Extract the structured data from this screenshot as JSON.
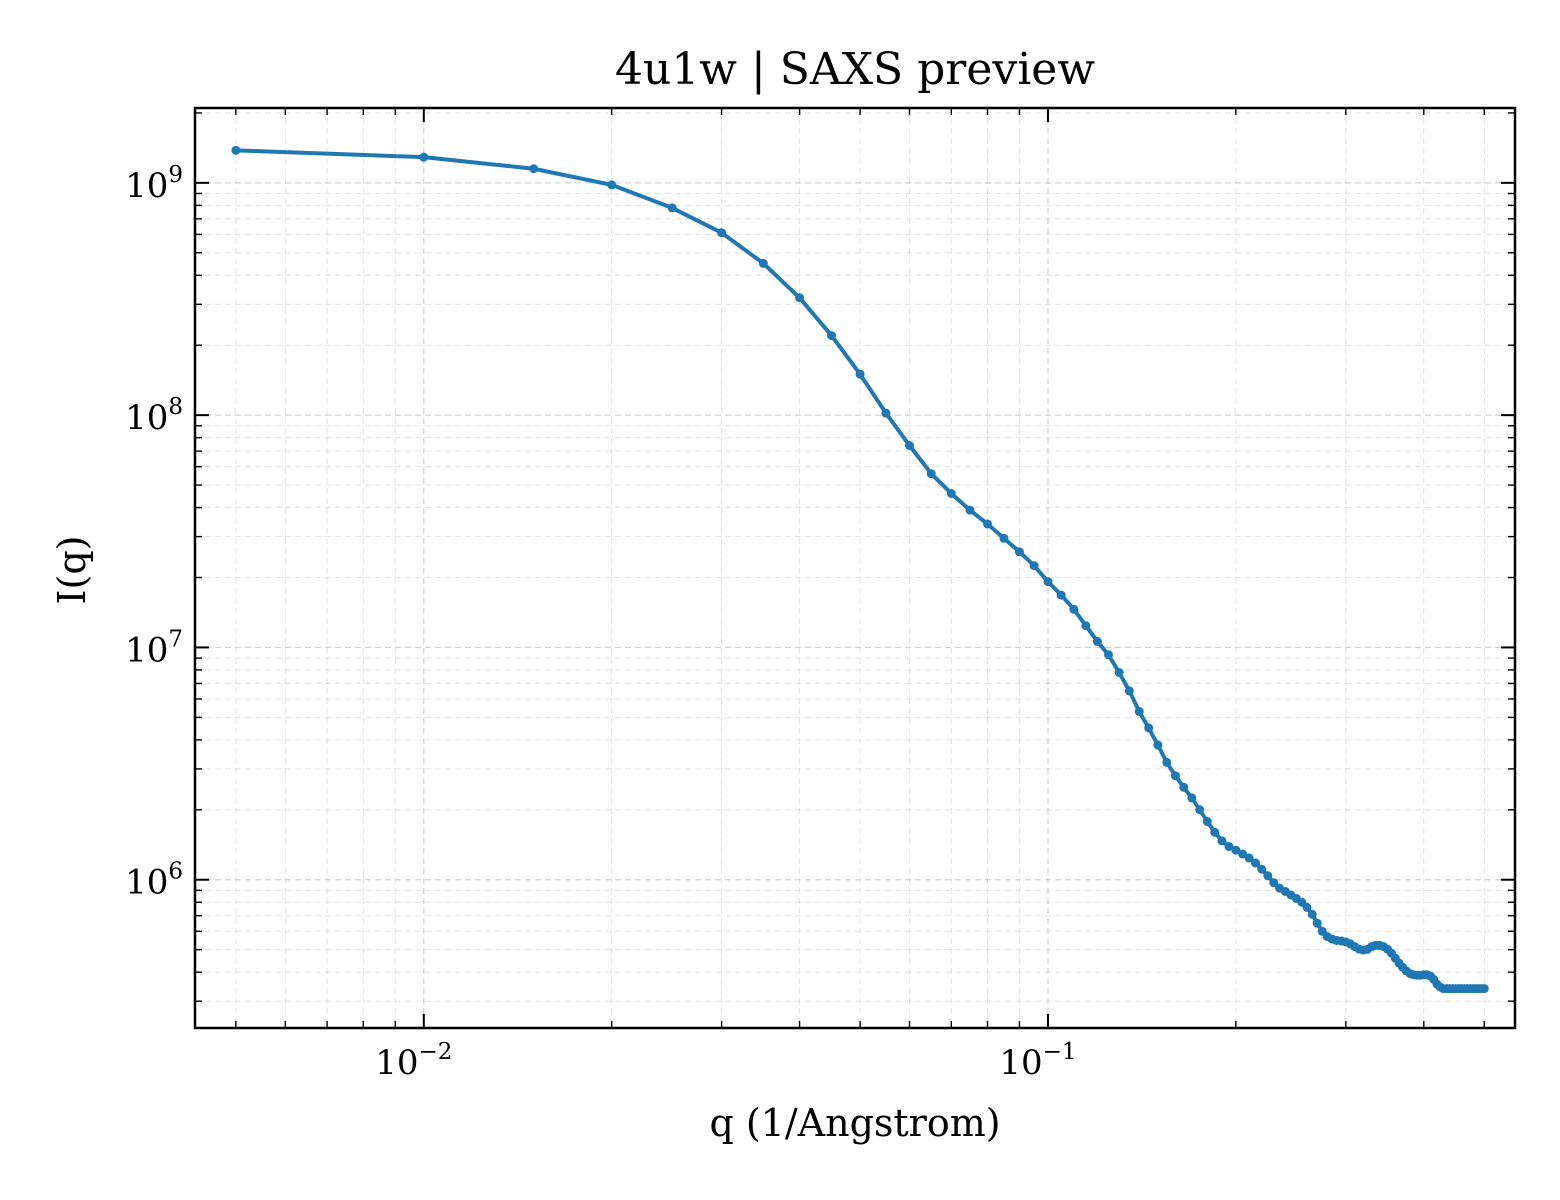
{
  "chart_data": {
    "type": "line",
    "title": "4u1w | SAXS preview",
    "xlabel": "q (1/Angstrom)",
    "ylabel": "I(q)",
    "xscale": "log",
    "yscale": "log",
    "xlim": [
      0.0043,
      0.56
    ],
    "ylim": [
      230000,
      2100000000
    ],
    "grid": true,
    "x_tick_labels": [
      {
        "value": 0.01,
        "base": "10",
        "exp": "−2"
      },
      {
        "value": 0.1,
        "base": "10",
        "exp": "−1"
      }
    ],
    "y_tick_labels": [
      {
        "value": 1000000,
        "base": "10",
        "exp": "6"
      },
      {
        "value": 10000000,
        "base": "10",
        "exp": "7"
      },
      {
        "value": 100000000,
        "base": "10",
        "exp": "8"
      },
      {
        "value": 1000000000,
        "base": "10",
        "exp": "9"
      }
    ],
    "series": [
      {
        "color": "#1f77b4",
        "x": [
          0.005,
          0.01,
          0.015,
          0.02,
          0.025,
          0.03,
          0.035,
          0.04,
          0.045,
          0.05,
          0.055,
          0.06,
          0.065,
          0.07,
          0.075,
          0.08,
          0.085,
          0.09,
          0.095,
          0.1,
          0.105,
          0.11,
          0.115,
          0.12,
          0.125,
          0.13,
          0.135,
          0.14,
          0.145,
          0.15,
          0.155,
          0.16,
          0.165,
          0.17,
          0.175,
          0.18,
          0.185,
          0.19,
          0.195,
          0.2,
          0.205,
          0.21,
          0.215,
          0.22,
          0.225,
          0.23,
          0.235,
          0.24,
          0.245,
          0.25,
          0.255,
          0.26,
          0.265,
          0.27,
          0.275,
          0.28,
          0.285,
          0.29,
          0.295,
          0.3,
          0.305,
          0.31,
          0.315,
          0.32,
          0.325,
          0.33,
          0.335,
          0.34,
          0.345,
          0.35,
          0.355,
          0.36,
          0.365,
          0.37,
          0.375,
          0.38,
          0.385,
          0.39,
          0.395,
          0.4,
          0.405,
          0.41,
          0.415,
          0.42,
          0.425,
          0.43,
          0.435,
          0.44,
          0.445,
          0.45,
          0.455,
          0.46,
          0.465,
          0.47,
          0.475,
          0.48,
          0.485,
          0.49,
          0.495,
          0.5
        ],
        "y": [
          1380000000,
          1290000000,
          1150000000,
          980000000,
          780000000,
          610000000,
          450000000,
          320000000,
          220000000,
          150000000,
          102000000,
          74000000,
          56000000,
          46000000,
          39000000,
          34000000,
          29500000,
          25800000,
          22500000,
          19200000,
          16800000,
          14600000,
          12400000,
          10600000,
          9300000,
          7800000,
          6500000,
          5300000,
          4500000,
          3800000,
          3200000,
          2800000,
          2500000,
          2250000,
          2000000,
          1780000,
          1600000,
          1470000,
          1390000,
          1340000,
          1290000,
          1240000,
          1180000,
          1110000,
          1040000,
          970000,
          920000,
          890000,
          860000,
          830000,
          800000,
          760000,
          710000,
          650000,
          600000,
          570000,
          555000,
          548000,
          545000,
          540000,
          530000,
          515000,
          503000,
          498000,
          502000,
          515000,
          522000,
          522000,
          515000,
          502000,
          483000,
          460000,
          438000,
          420000,
          405000,
          395000,
          390000,
          388000,
          388000,
          390000,
          390000,
          385000,
          372000,
          355000,
          345000,
          340000,
          340000,
          340000,
          340000,
          340000,
          340000,
          340000,
          340000,
          340000,
          340000,
          340000,
          340000,
          340000,
          340000,
          340000
        ]
      }
    ]
  }
}
